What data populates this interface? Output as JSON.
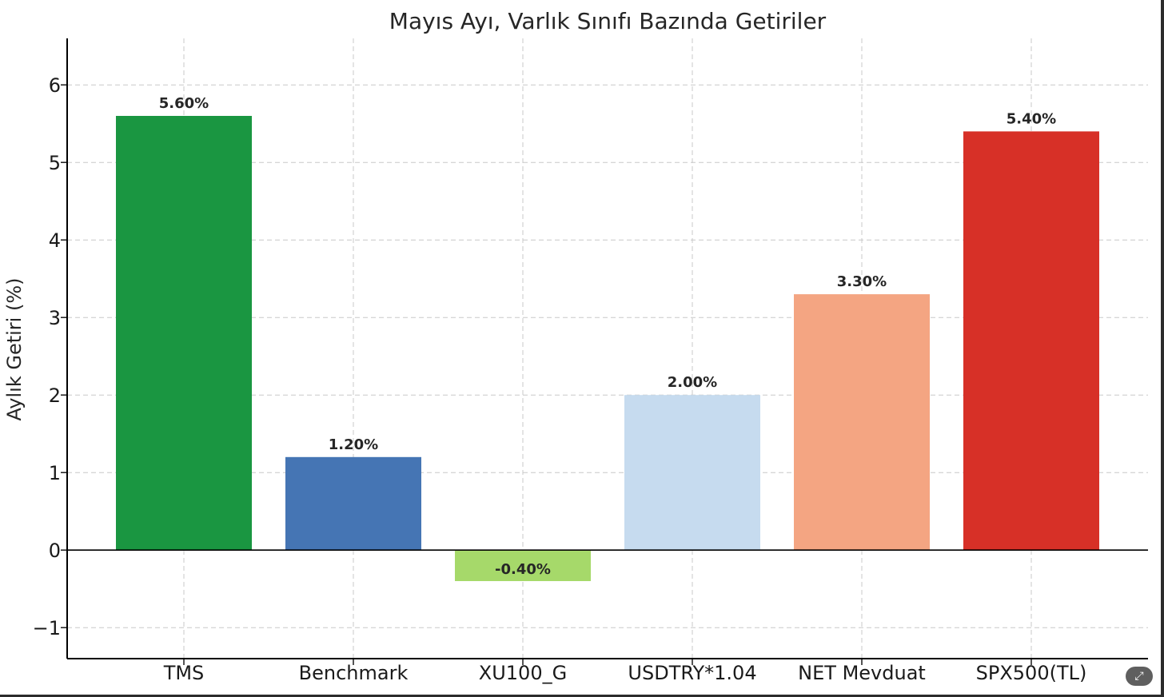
{
  "ui": {
    "expand_icon": "expand-icon",
    "expand_glyph": "⤢"
  },
  "chart_data": {
    "type": "bar",
    "title": "Mayıs Ayı, Varlık Sınıfı Bazında Getiriler",
    "xlabel": "",
    "ylabel": "Aylık Getiri (%)",
    "ylim": [
      -1.4,
      6.6
    ],
    "yticks": [
      -1,
      0,
      1,
      2,
      3,
      4,
      5,
      6
    ],
    "ytick_labels": [
      "−1",
      "0",
      "1",
      "2",
      "3",
      "4",
      "5",
      "6"
    ],
    "grid": true,
    "categories": [
      "TMS",
      "Benchmark",
      "XU100_G",
      "USDTRY*1.04",
      "NET Mevduat",
      "SPX500(TL)"
    ],
    "values": [
      5.6,
      1.2,
      -0.4,
      2.0,
      3.3,
      5.4
    ],
    "data_labels": [
      "5.60%",
      "1.20%",
      "-0.40%",
      "2.00%",
      "3.30%",
      "5.40%"
    ],
    "colors": [
      "#1a9641",
      "#4575b4",
      "#a6d96a",
      "#c6dbef",
      "#f4a582",
      "#d73027"
    ]
  }
}
